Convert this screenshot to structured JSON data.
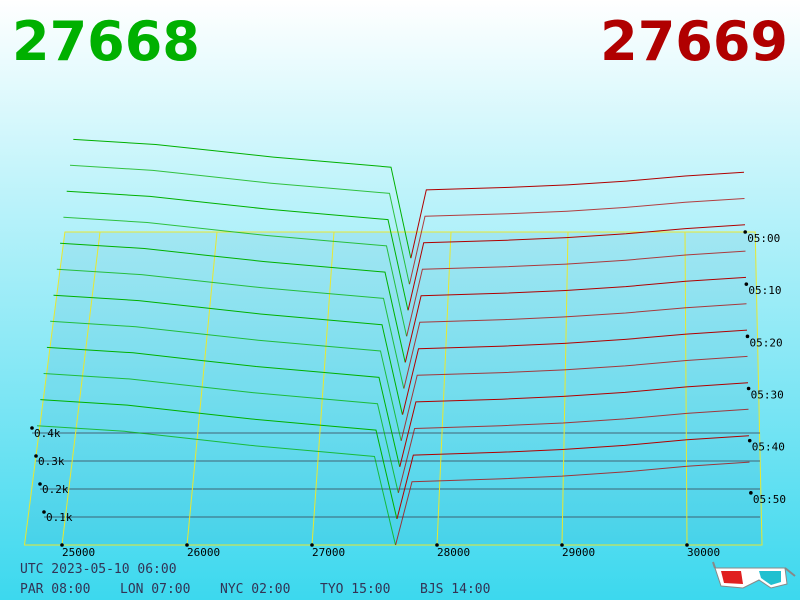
{
  "chart_data": {
    "type": "depth-3d",
    "bid": 27668,
    "ask": 27669,
    "bid_color": "#00b000",
    "ask_color": "#b00000",
    "timestamp": "UTC 2023-05-10 06:00",
    "clocks": [
      "PAR 08:00",
      "LON 07:00",
      "NYC 02:00",
      "TYO 15:00",
      "BJS 14:00"
    ],
    "xlim": [
      24700,
      30600
    ],
    "xticks": [
      25000,
      26000,
      27000,
      28000,
      29000,
      30000
    ],
    "ylim": [
      0,
      500
    ],
    "yticks": [
      {
        "value": 100,
        "label": "0.1k"
      },
      {
        "value": 200,
        "label": "0.2k"
      },
      {
        "value": 300,
        "label": "0.3k"
      },
      {
        "value": 400,
        "label": "0.4k"
      }
    ],
    "tlim": [
      0,
      60
    ],
    "tticks": [
      {
        "value": 0,
        "label": "05:00"
      },
      {
        "value": 10,
        "label": "05:10"
      },
      {
        "value": 20,
        "label": "05:20"
      },
      {
        "value": 30,
        "label": "05:30"
      },
      {
        "value": 40,
        "label": "05:40"
      },
      {
        "value": 50,
        "label": "05:50"
      }
    ],
    "bid_prices": [
      24800,
      25500,
      26000,
      26500,
      27000,
      27500,
      27668
    ],
    "ask_prices": [
      27669,
      27800,
      28500,
      29000,
      29500,
      30000,
      30500
    ],
    "snapshots": [
      {
        "time": 5,
        "bids": [
          470,
          450,
          425,
          400,
          380,
          360,
          0
        ],
        "asks": [
          0,
          270,
          280,
          290,
          305,
          325,
          340
        ]
      },
      {
        "time": 10,
        "bids": [
          466,
          446,
          421,
          396,
          376,
          356,
          0
        ],
        "asks": [
          0,
          266,
          276,
          286,
          301,
          321,
          336
        ]
      },
      {
        "time": 15,
        "bids": [
          462,
          442,
          417,
          392,
          372,
          352,
          0
        ],
        "asks": [
          0,
          262,
          272,
          282,
          297,
          317,
          332
        ]
      },
      {
        "time": 20,
        "bids": [
          458,
          438,
          413,
          388,
          368,
          348,
          0
        ],
        "asks": [
          0,
          258,
          268,
          278,
          293,
          313,
          328
        ]
      },
      {
        "time": 25,
        "bids": [
          454,
          434,
          409,
          384,
          364,
          344,
          0
        ],
        "asks": [
          0,
          254,
          264,
          274,
          289,
          309,
          324
        ]
      },
      {
        "time": 30,
        "bids": [
          450,
          430,
          405,
          380,
          360,
          340,
          0
        ],
        "asks": [
          0,
          250,
          260,
          270,
          285,
          305,
          320
        ]
      },
      {
        "time": 35,
        "bids": [
          446,
          426,
          401,
          376,
          356,
          336,
          0
        ],
        "asks": [
          0,
          246,
          256,
          266,
          281,
          301,
          316
        ]
      },
      {
        "time": 40,
        "bids": [
          442,
          422,
          397,
          372,
          352,
          332,
          0
        ],
        "asks": [
          0,
          242,
          252,
          262,
          277,
          297,
          312
        ]
      },
      {
        "time": 45,
        "bids": [
          438,
          418,
          393,
          368,
          348,
          328,
          0
        ],
        "asks": [
          0,
          238,
          248,
          258,
          273,
          293,
          308
        ]
      },
      {
        "time": 50,
        "bids": [
          434,
          414,
          389,
          364,
          344,
          324,
          0
        ],
        "asks": [
          0,
          234,
          244,
          254,
          269,
          289,
          304
        ]
      },
      {
        "time": 55,
        "bids": [
          430,
          410,
          385,
          360,
          340,
          320,
          0
        ],
        "asks": [
          0,
          230,
          240,
          250,
          265,
          285,
          300
        ]
      },
      {
        "time": 60,
        "bids": [
          426,
          406,
          381,
          356,
          336,
          316,
          0
        ],
        "asks": [
          0,
          226,
          236,
          246,
          261,
          281,
          296
        ]
      }
    ]
  }
}
